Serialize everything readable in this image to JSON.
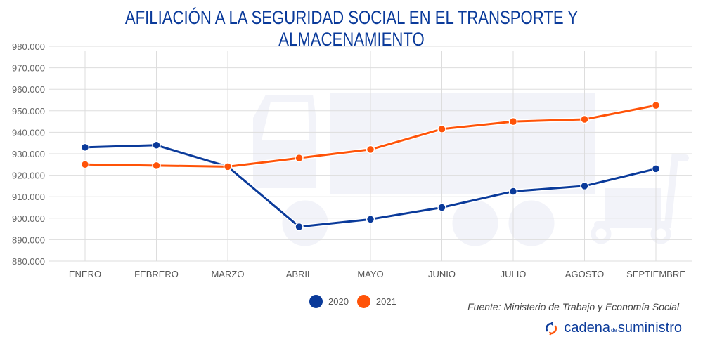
{
  "chart_data": {
    "type": "line",
    "title": "AFILIACIÓN A LA SEGURIDAD SOCIAL EN EL TRANSPORTE Y ALMACENAMIENTO",
    "xlabel": "",
    "ylabel": "",
    "categories": [
      "ENERO",
      "FEBRERO",
      "MARZO",
      "ABRIL",
      "MAYO",
      "JUNIO",
      "JULIO",
      "AGOSTO",
      "SEPTIEMBRE"
    ],
    "ylim": [
      880000,
      980000
    ],
    "yticks": [
      980000,
      970000,
      960000,
      950000,
      940000,
      930000,
      920000,
      910000,
      900000,
      890000,
      880000
    ],
    "ytick_labels": [
      "980.000",
      "970.000",
      "960.000",
      "950.000",
      "940.000",
      "930.000",
      "920.000",
      "910.000",
      "900.000",
      "890.000",
      "880.000"
    ],
    "grid": true,
    "legend_position": "bottom-center",
    "series": [
      {
        "name": "2020",
        "color": "#0a3a9a",
        "values": [
          933000,
          934000,
          924000,
          896000,
          899500,
          905000,
          912500,
          915000,
          923000
        ]
      },
      {
        "name": "2021",
        "color": "#ff5308",
        "values": [
          925000,
          924500,
          924000,
          928000,
          932000,
          941500,
          945000,
          946000,
          952500
        ]
      }
    ]
  },
  "legend": {
    "items": [
      {
        "label": "2020",
        "color": "#0a3a9a"
      },
      {
        "label": "2021",
        "color": "#ff5308"
      }
    ]
  },
  "source": "Fuente: Ministerio de Trabajo y Economía Social",
  "brand": {
    "part1": "cadena",
    "part2": "de",
    "part3": "suministro"
  },
  "colors": {
    "title": "#0a3a9a",
    "grid": "#dddddd",
    "watermark": "#f2f3f9"
  }
}
